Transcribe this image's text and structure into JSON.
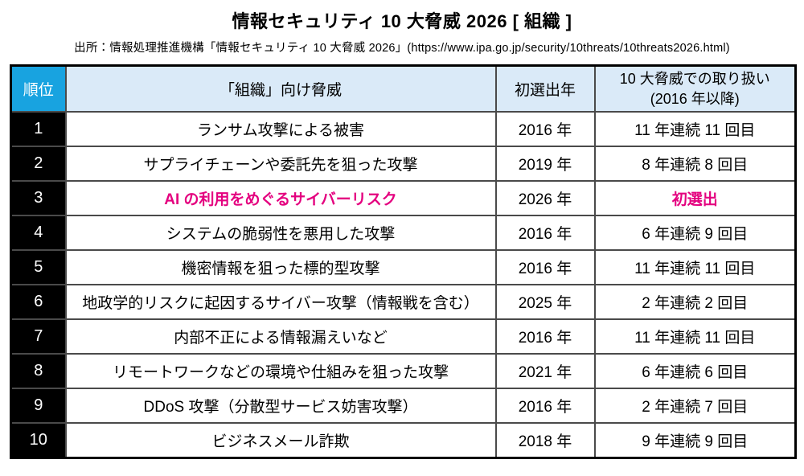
{
  "title": "情報セキュリティ 10 大脅威 2026 [ 組織 ]",
  "source": "出所：情報処理推進機構「情報セキュリティ 10 大脅威 2026」(https://www.ipa.go.jp/security/10threats/10threats2026.html)",
  "colors": {
    "rank_header_bg": "#18a3e0",
    "header_bg": "#daeaf8",
    "rank_cell_bg": "#000000",
    "highlight_text": "#e4007f",
    "border": "#4a4a4a"
  },
  "table": {
    "headers": {
      "rank": "順位",
      "threat": "「組織」向け脅威",
      "first_year": "初選出年",
      "handling_line1": "10 大脅威での取り扱い",
      "handling_line2": "(2016 年以降)"
    },
    "rows": [
      {
        "rank": "1",
        "threat": "ランサム攻撃による被害",
        "first_year": "2016 年",
        "handling": "11 年連続 11 回目",
        "highlight": false
      },
      {
        "rank": "2",
        "threat": "サプライチェーンや委託先を狙った攻撃",
        "first_year": "2019 年",
        "handling": "8 年連続 8 回目",
        "highlight": false
      },
      {
        "rank": "3",
        "threat": "AI の利用をめぐるサイバーリスク",
        "first_year": "2026 年",
        "handling": "初選出",
        "highlight": true
      },
      {
        "rank": "4",
        "threat": "システムの脆弱性を悪用した攻撃",
        "first_year": "2016 年",
        "handling": "6 年連続 9 回目",
        "highlight": false
      },
      {
        "rank": "5",
        "threat": "機密情報を狙った標的型攻撃",
        "first_year": "2016 年",
        "handling": "11 年連続 11 回目",
        "highlight": false
      },
      {
        "rank": "6",
        "threat": "地政学的リスクに起因するサイバー攻撃（情報戦を含む）",
        "first_year": "2025 年",
        "handling": "2 年連続 2 回目",
        "highlight": false
      },
      {
        "rank": "7",
        "threat": "内部不正による情報漏えいなど",
        "first_year": "2016 年",
        "handling": "11 年連続 11 回目",
        "highlight": false
      },
      {
        "rank": "8",
        "threat": "リモートワークなどの環境や仕組みを狙った攻撃",
        "first_year": "2021 年",
        "handling": "6 年連続 6 回目",
        "highlight": false
      },
      {
        "rank": "9",
        "threat": "DDoS 攻撃（分散型サービス妨害攻撃）",
        "first_year": "2016 年",
        "handling": "2 年連続 7 回目",
        "highlight": false
      },
      {
        "rank": "10",
        "threat": "ビジネスメール詐欺",
        "first_year": "2018 年",
        "handling": "9 年連続 9 回目",
        "highlight": false
      }
    ]
  }
}
